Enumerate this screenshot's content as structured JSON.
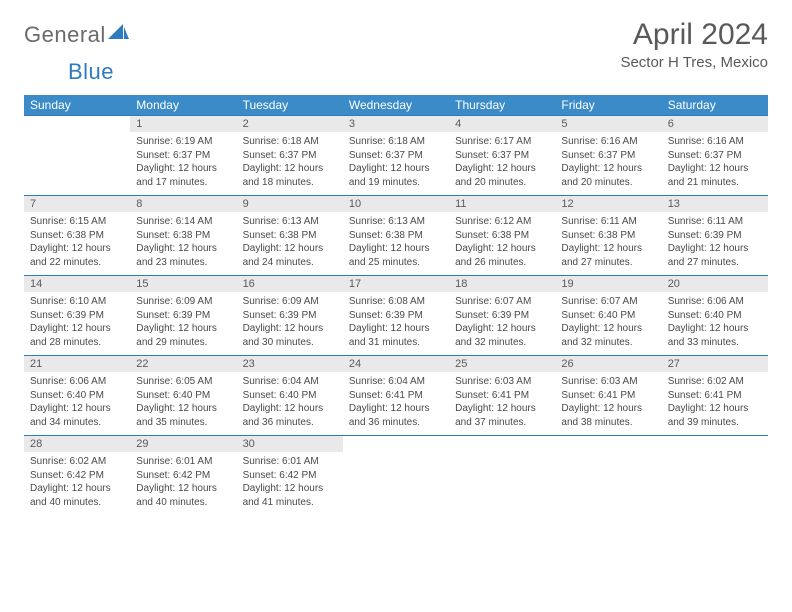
{
  "logo": {
    "text1": "General",
    "text2": "Blue"
  },
  "title": "April 2024",
  "location": "Sector H Tres, Mexico",
  "colors": {
    "header_bg": "#3b8bc9",
    "daynum_bg": "#e9e9e9",
    "border": "#2f7bbf",
    "text": "#4a4a4a",
    "title": "#595959"
  },
  "day_headers": [
    "Sunday",
    "Monday",
    "Tuesday",
    "Wednesday",
    "Thursday",
    "Friday",
    "Saturday"
  ],
  "weeks": [
    [
      null,
      {
        "n": "1",
        "sr": "6:19 AM",
        "ss": "6:37 PM",
        "dl": "12 hours and 17 minutes."
      },
      {
        "n": "2",
        "sr": "6:18 AM",
        "ss": "6:37 PM",
        "dl": "12 hours and 18 minutes."
      },
      {
        "n": "3",
        "sr": "6:18 AM",
        "ss": "6:37 PM",
        "dl": "12 hours and 19 minutes."
      },
      {
        "n": "4",
        "sr": "6:17 AM",
        "ss": "6:37 PM",
        "dl": "12 hours and 20 minutes."
      },
      {
        "n": "5",
        "sr": "6:16 AM",
        "ss": "6:37 PM",
        "dl": "12 hours and 20 minutes."
      },
      {
        "n": "6",
        "sr": "6:16 AM",
        "ss": "6:37 PM",
        "dl": "12 hours and 21 minutes."
      }
    ],
    [
      {
        "n": "7",
        "sr": "6:15 AM",
        "ss": "6:38 PM",
        "dl": "12 hours and 22 minutes."
      },
      {
        "n": "8",
        "sr": "6:14 AM",
        "ss": "6:38 PM",
        "dl": "12 hours and 23 minutes."
      },
      {
        "n": "9",
        "sr": "6:13 AM",
        "ss": "6:38 PM",
        "dl": "12 hours and 24 minutes."
      },
      {
        "n": "10",
        "sr": "6:13 AM",
        "ss": "6:38 PM",
        "dl": "12 hours and 25 minutes."
      },
      {
        "n": "11",
        "sr": "6:12 AM",
        "ss": "6:38 PM",
        "dl": "12 hours and 26 minutes."
      },
      {
        "n": "12",
        "sr": "6:11 AM",
        "ss": "6:38 PM",
        "dl": "12 hours and 27 minutes."
      },
      {
        "n": "13",
        "sr": "6:11 AM",
        "ss": "6:39 PM",
        "dl": "12 hours and 27 minutes."
      }
    ],
    [
      {
        "n": "14",
        "sr": "6:10 AM",
        "ss": "6:39 PM",
        "dl": "12 hours and 28 minutes."
      },
      {
        "n": "15",
        "sr": "6:09 AM",
        "ss": "6:39 PM",
        "dl": "12 hours and 29 minutes."
      },
      {
        "n": "16",
        "sr": "6:09 AM",
        "ss": "6:39 PM",
        "dl": "12 hours and 30 minutes."
      },
      {
        "n": "17",
        "sr": "6:08 AM",
        "ss": "6:39 PM",
        "dl": "12 hours and 31 minutes."
      },
      {
        "n": "18",
        "sr": "6:07 AM",
        "ss": "6:39 PM",
        "dl": "12 hours and 32 minutes."
      },
      {
        "n": "19",
        "sr": "6:07 AM",
        "ss": "6:40 PM",
        "dl": "12 hours and 32 minutes."
      },
      {
        "n": "20",
        "sr": "6:06 AM",
        "ss": "6:40 PM",
        "dl": "12 hours and 33 minutes."
      }
    ],
    [
      {
        "n": "21",
        "sr": "6:06 AM",
        "ss": "6:40 PM",
        "dl": "12 hours and 34 minutes."
      },
      {
        "n": "22",
        "sr": "6:05 AM",
        "ss": "6:40 PM",
        "dl": "12 hours and 35 minutes."
      },
      {
        "n": "23",
        "sr": "6:04 AM",
        "ss": "6:40 PM",
        "dl": "12 hours and 36 minutes."
      },
      {
        "n": "24",
        "sr": "6:04 AM",
        "ss": "6:41 PM",
        "dl": "12 hours and 36 minutes."
      },
      {
        "n": "25",
        "sr": "6:03 AM",
        "ss": "6:41 PM",
        "dl": "12 hours and 37 minutes."
      },
      {
        "n": "26",
        "sr": "6:03 AM",
        "ss": "6:41 PM",
        "dl": "12 hours and 38 minutes."
      },
      {
        "n": "27",
        "sr": "6:02 AM",
        "ss": "6:41 PM",
        "dl": "12 hours and 39 minutes."
      }
    ],
    [
      {
        "n": "28",
        "sr": "6:02 AM",
        "ss": "6:42 PM",
        "dl": "12 hours and 40 minutes."
      },
      {
        "n": "29",
        "sr": "6:01 AM",
        "ss": "6:42 PM",
        "dl": "12 hours and 40 minutes."
      },
      {
        "n": "30",
        "sr": "6:01 AM",
        "ss": "6:42 PM",
        "dl": "12 hours and 41 minutes."
      },
      null,
      null,
      null,
      null
    ]
  ],
  "labels": {
    "sunrise": "Sunrise:",
    "sunset": "Sunset:",
    "daylight": "Daylight:"
  }
}
